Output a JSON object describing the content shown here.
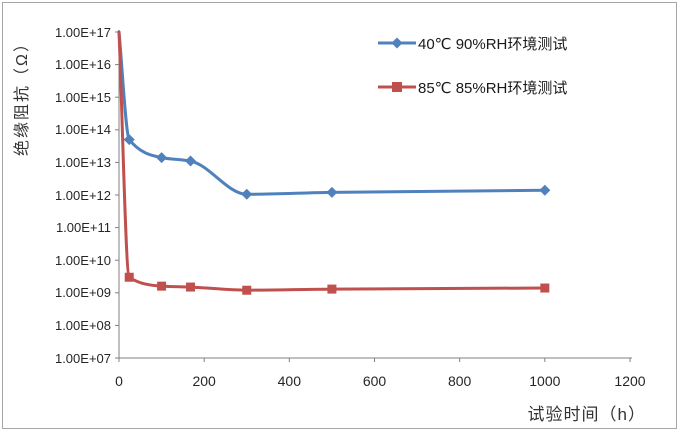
{
  "chart_data": {
    "type": "line",
    "title": "",
    "grid": false,
    "legend_position": "inside-top-right",
    "x_axis": {
      "title": "试验时间（h）",
      "min": 0,
      "max": 1200,
      "ticks": [
        0,
        200,
        400,
        600,
        800,
        1000,
        1200
      ],
      "tick_labels": [
        "0",
        "200",
        "400",
        "600",
        "800",
        "1000",
        "1200"
      ]
    },
    "y_axis": {
      "title": "绝缘阻抗（Ω）",
      "scale": "log",
      "min": 10000000.0,
      "max": 1e+17,
      "tick_labels": [
        "1.00E+17",
        "1.00E+16",
        "1.00E+15",
        "1.00E+14",
        "1.00E+13",
        "1.00E+12",
        "1.00E+11",
        "1.00E+10",
        "1.00E+09",
        "1.00E+08",
        "1.00E+07"
      ]
    },
    "series": [
      {
        "name": "40℃ 90%RH环境测试",
        "color": "#4F81BD",
        "marker": "diamond",
        "x": [
          0,
          24,
          100,
          168,
          300,
          500,
          1000
        ],
        "y": [
          1e+17,
          50000000000000.0,
          14000000000000.0,
          11000000000000.0,
          1050000000000.0,
          1200000000000.0,
          1400000000000.0
        ]
      },
      {
        "name": "85℃ 85%RH环境测试",
        "color": "#C0504D",
        "marker": "square",
        "x": [
          0,
          24,
          100,
          168,
          300,
          500,
          1000
        ],
        "y": [
          1e+17,
          3000000000.0,
          1600000000.0,
          1500000000.0,
          1200000000.0,
          1300000000.0,
          1400000000.0
        ]
      }
    ]
  },
  "colors": {
    "axis": "#808080",
    "text": "#262626",
    "border": "#a6a6a6",
    "background": "#ffffff"
  }
}
